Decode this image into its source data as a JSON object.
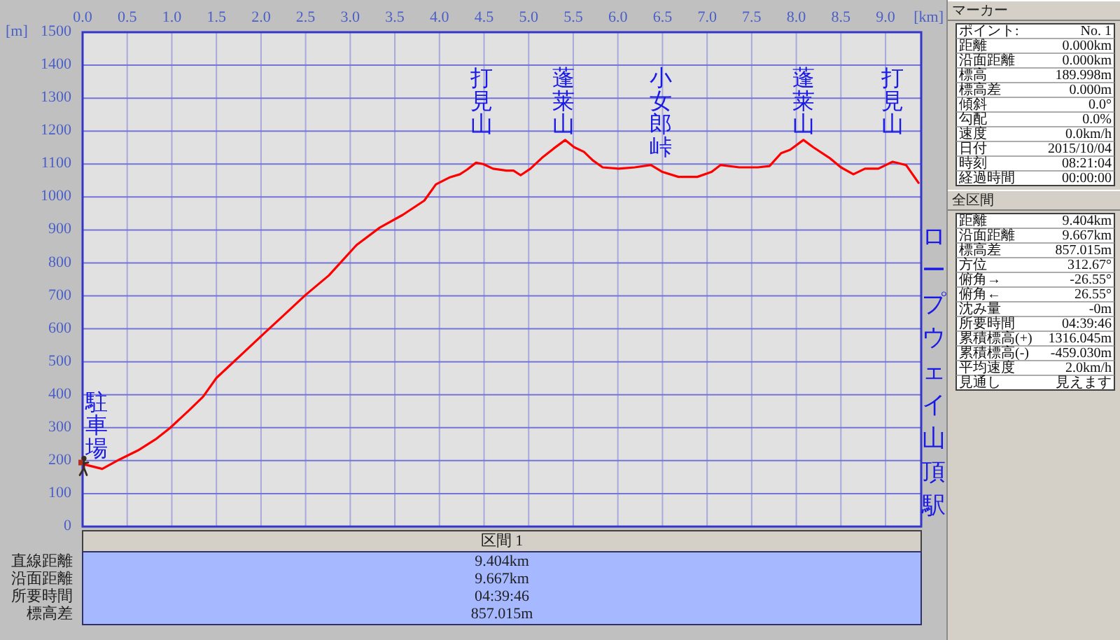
{
  "chart_data": [
    {
      "type": "line",
      "xlabel": "[km]",
      "ylabel": "[m]",
      "xlim": [
        0,
        9.4
      ],
      "ylim": [
        0,
        1500
      ],
      "xticks": [
        {
          "value": 0,
          "label": "0.0"
        },
        0.5,
        {
          "value": 1,
          "label": "1.0"
        },
        1.5,
        {
          "value": 2,
          "label": "2.0"
        },
        2.5,
        {
          "value": 3,
          "label": "3.0"
        },
        3.5,
        {
          "value": 4,
          "label": "4.0"
        },
        4.5,
        {
          "value": 5,
          "label": "5.0"
        },
        5.5,
        {
          "value": 6,
          "label": "6.0"
        },
        6.5,
        {
          "value": 7,
          "label": "7.0"
        },
        7.5,
        {
          "value": 8,
          "label": "8.0"
        },
        8.5,
        {
          "value": 9,
          "label": "9.0"
        }
      ],
      "yticks": [
        0,
        100,
        200,
        300,
        400,
        500,
        600,
        700,
        800,
        900,
        1000,
        1100,
        1200,
        1300,
        1400,
        1500
      ],
      "grid": true,
      "series": [
        {
          "color": "#ff0000",
          "x": [
            0,
            0.22,
            0.41,
            0.62,
            0.83,
            0.98,
            1.19,
            1.35,
            1.5,
            1.71,
            2.03,
            2.23,
            2.5,
            2.76,
            3.07,
            3.33,
            3.59,
            3.83,
            3.96,
            4.11,
            4.23,
            4.31,
            4.41,
            4.49,
            4.6,
            4.75,
            4.83,
            4.91,
            5.02,
            5.15,
            5.28,
            5.41,
            5.51,
            5.62,
            5.72,
            5.83,
            6.01,
            6.19,
            6.37,
            6.5,
            6.68,
            6.89,
            7.05,
            7.15,
            7.36,
            7.57,
            7.7,
            7.83,
            7.93,
            8.08,
            8.19,
            8.37,
            8.5,
            8.64,
            8.77,
            8.92,
            9.08,
            9.23,
            9.37
          ],
          "values": [
            190,
            175,
            203,
            231,
            267,
            299,
            352,
            394,
            451,
            504,
            585,
            635,
            703,
            762,
            854,
            907,
            946,
            989,
            1038,
            1059,
            1069,
            1083,
            1104,
            1100,
            1086,
            1080,
            1080,
            1066,
            1086,
            1119,
            1147,
            1173,
            1151,
            1137,
            1111,
            1090,
            1086,
            1090,
            1097,
            1076,
            1061,
            1061,
            1076,
            1097,
            1090,
            1090,
            1094,
            1133,
            1143,
            1173,
            1151,
            1119,
            1090,
            1069,
            1086,
            1086,
            1107,
            1097,
            1043
          ]
        }
      ],
      "annotations": [
        {
          "text": "駐車場",
          "x": 0,
          "y": 190
        },
        {
          "text": "打見山",
          "x": 4.47,
          "y": 1101
        },
        {
          "text": "蓬莱山",
          "x": 5.39,
          "y": 1169
        },
        {
          "text": "小女郎峠",
          "x": 6.48,
          "y": 1079
        },
        {
          "text": "蓬莱山",
          "x": 8.08,
          "y": 1173
        },
        {
          "text": "打見山",
          "x": 9.08,
          "y": 1107
        },
        "ロープウェイ山頂駅"
      ]
    },
    {
      "type": "other",
      "title": "区間 1",
      "annotations": [
        "直線距離",
        "9.404km",
        "沿面距離",
        "9.667km",
        "所要時間",
        "04:39:46",
        "標高差",
        "857.015m"
      ]
    },
    {
      "type": "other",
      "title": "マーカー",
      "annotations": [
        "ポイント:",
        "No. 1",
        "距離",
        "0.000km",
        "沿面距離",
        "0.000km",
        "標高",
        "189.998m",
        "標高差",
        "0.000m",
        "傾斜",
        "0.0°",
        "勾配",
        "0.0%",
        "速度",
        "0.0km/h",
        "日付",
        "2015/10/04",
        "時刻",
        "08:21:04",
        "経過時間",
        "00:00:00"
      ]
    },
    {
      "type": "other",
      "title": "全区間",
      "annotations": [
        "距離",
        "9.404km",
        "沿面距離",
        "9.667km",
        "標高差",
        "857.015m",
        "方位",
        "312.67°",
        "俯角→",
        "-26.55°",
        "俯角←",
        "26.55°",
        "沈み量",
        "-0m",
        "所要時間",
        "04:39:46",
        "累積標高(+)",
        "1316.045m",
        "累積標高(-)",
        "-459.030m",
        "平均速度",
        "2.0km/h",
        "見通し",
        "見えます"
      ]
    }
  ]
}
